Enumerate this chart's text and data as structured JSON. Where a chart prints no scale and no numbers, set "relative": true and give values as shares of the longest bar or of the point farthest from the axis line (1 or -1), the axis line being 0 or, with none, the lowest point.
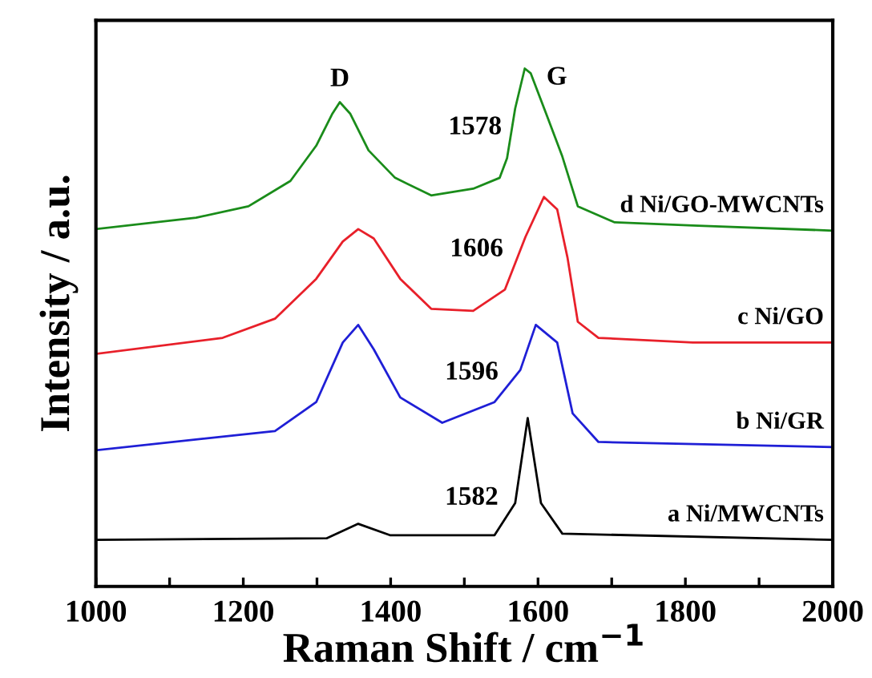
{
  "chart_data": {
    "type": "line",
    "relative": true,
    "xlabel": "Raman Shift / cm$^{−1}$",
    "ylabel": "Intensity / a.u.",
    "xlim": [
      1000,
      2000
    ],
    "xticks": [
      1000,
      {
        "value": 1100,
        "label": null
      },
      1200,
      {
        "value": 1300,
        "label": null
      },
      1400,
      {
        "value": 1500,
        "label": null
      },
      1600,
      {
        "value": 1700,
        "label": null
      },
      1800,
      {
        "value": 1900,
        "label": null
      },
      2000
    ],
    "grid": false,
    "legend": false,
    "marker": "none",
    "line_style": "solid",
    "series": [
      {
        "name": "a Ni/MWCNTs",
        "color": "#000000",
        "x": [
          1000,
          1313,
          1356,
          1399,
          1541,
          1569,
          1586,
          1604,
          1633,
          2000
        ],
        "values": [
          0.09,
          0.093,
          0.121,
          0.099,
          0.099,
          0.161,
          0.325,
          0.161,
          0.102,
          0.09
        ]
      },
      {
        "name": "b Ni/GR",
        "color": "#1f1fd6",
        "x": [
          1000,
          1243,
          1299,
          1335,
          1356,
          1377,
          1413,
          1470,
          1541,
          1576,
          1597,
          1626,
          1647,
          1682,
          2000
        ],
        "values": [
          0.263,
          0.3,
          0.356,
          0.471,
          0.505,
          0.458,
          0.365,
          0.316,
          0.356,
          0.418,
          0.505,
          0.471,
          0.334,
          0.279,
          0.269
        ]
      },
      {
        "name": "c Ni/GO",
        "color": "#e8202a",
        "x": [
          1000,
          1172,
          1243,
          1299,
          1335,
          1356,
          1377,
          1413,
          1455,
          1512,
          1555,
          1583,
          1608,
          1626,
          1640,
          1654,
          1682,
          1810,
          2000
        ],
        "values": [
          0.449,
          0.48,
          0.517,
          0.594,
          0.666,
          0.69,
          0.672,
          0.594,
          0.536,
          0.532,
          0.573,
          0.675,
          0.752,
          0.728,
          0.635,
          0.511,
          0.48,
          0.471,
          0.471
        ]
      },
      {
        "name": "d Ni/GO-MWCNTs",
        "color": "#1a8c1a",
        "x": [
          1000,
          1136,
          1207,
          1264,
          1299,
          1321,
          1331,
          1345,
          1370,
          1406,
          1455,
          1512,
          1548,
          1558,
          1569,
          1582,
          1590,
          1611,
          1633,
          1654,
          1704,
          1810,
          2000
        ],
        "values": [
          0.69,
          0.712,
          0.734,
          0.783,
          0.851,
          0.913,
          0.935,
          0.913,
          0.842,
          0.789,
          0.755,
          0.768,
          0.789,
          0.827,
          0.923,
          1.0,
          0.991,
          0.913,
          0.83,
          0.734,
          0.703,
          0.697,
          0.687
        ]
      }
    ],
    "annotations": [
      {
        "text": "D",
        "x": 1331,
        "y": 0.935
      },
      {
        "text": "G",
        "x": 1582,
        "y": 1.0
      },
      {
        "text": "1578",
        "x": 1582,
        "y": 1.0
      },
      {
        "text": "1606",
        "x": 1608,
        "y": 0.752
      },
      {
        "text": "1596",
        "x": 1597,
        "y": 0.505
      },
      {
        "text": "1582",
        "x": 1586,
        "y": 0.325
      }
    ]
  }
}
